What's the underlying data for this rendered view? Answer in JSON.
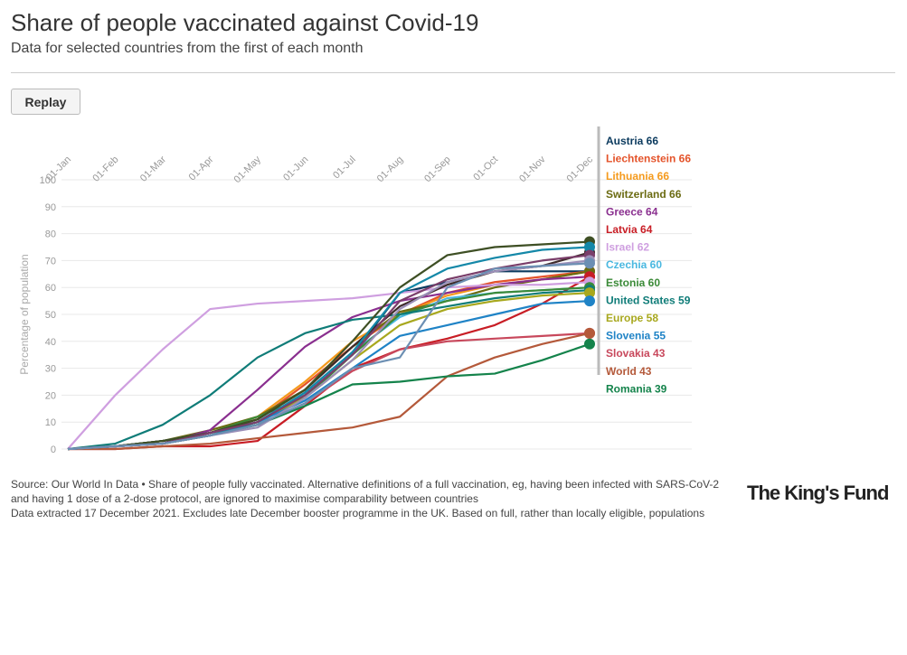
{
  "header": {
    "title": "Share of people vaccinated against Covid-19",
    "subtitle": "Data for selected countries from the first of each month"
  },
  "controls": {
    "replay_label": "Replay"
  },
  "footer": {
    "line1": "Source: Our World In Data • Share of people fully vaccinated. Alternative definitions of a full vaccination, eg, having been infected with SARS-CoV-2 and having 1 dose of a 2-dose protocol, are ignored to maximise comparability between countries",
    "line2": "Data extracted 17 December 2021. Excludes late December booster programme in the UK. Based on full, rather than locally eligible, populations",
    "logo": "The King's Fund"
  },
  "chart_data": {
    "type": "line",
    "title": "Share of people vaccinated against Covid-19",
    "subtitle": "Data for selected countries from the first of each month",
    "xlabel": "",
    "ylabel": "Percentage of population",
    "x": [
      "01-Jan",
      "01-Feb",
      "01-Mar",
      "01-Apr",
      "01-May",
      "01-Jun",
      "01-Jul",
      "01-Aug",
      "01-Sep",
      "01-Oct",
      "01-Nov",
      "01-Dec"
    ],
    "ylim": [
      0,
      100
    ],
    "yticks": [
      0,
      10,
      20,
      30,
      40,
      50,
      60,
      70,
      80,
      90,
      100
    ],
    "grid": true,
    "legend_placement": "right (end labels)",
    "series": [
      {
        "name": "Austria",
        "label": "Austria 66",
        "color": "#0b3a5e",
        "values": [
          0,
          1,
          3,
          6,
          10,
          20,
          35,
          58,
          62,
          66,
          66,
          66
        ]
      },
      {
        "name": "Liechtenstein",
        "label": "Liechtenstein 66",
        "color": "#e4532a",
        "values": [
          0,
          1,
          2,
          6,
          11,
          24,
          38,
          50,
          58,
          62,
          64,
          66
        ]
      },
      {
        "name": "Lithuania",
        "label": "Lithuania 66",
        "color": "#f59a1c",
        "values": [
          0,
          1,
          3,
          6,
          12,
          25,
          40,
          50,
          57,
          61,
          63,
          66
        ]
      },
      {
        "name": "Switzerland",
        "label": "Switzerland 66",
        "color": "#6b6b12",
        "values": [
          0,
          1,
          3,
          7,
          12,
          22,
          38,
          51,
          55,
          60,
          63,
          66
        ]
      },
      {
        "name": "Greece",
        "label": "Greece 64",
        "color": "#8a2f8f",
        "values": [
          0,
          1,
          2,
          7,
          22,
          38,
          49,
          55,
          58,
          61,
          63,
          64
        ]
      },
      {
        "name": "Latvia",
        "label": "Latvia 64",
        "color": "#c81d25",
        "values": [
          0,
          0,
          1,
          1,
          3,
          16,
          30,
          37,
          41,
          46,
          54,
          64
        ]
      },
      {
        "name": "Israel",
        "label": "Israel 62",
        "color": "#cf9fe0",
        "values": [
          0,
          20,
          37,
          52,
          54,
          55,
          56,
          58,
          60,
          61,
          61,
          62
        ]
      },
      {
        "name": "Czechia",
        "label": "Czechia 60",
        "color": "#4ab8e0",
        "values": [
          0,
          1,
          2,
          5,
          9,
          21,
          36,
          49,
          56,
          58,
          59,
          60
        ]
      },
      {
        "name": "Estonia",
        "label": "Estonia 60",
        "color": "#3b8a38",
        "values": [
          0,
          1,
          3,
          6,
          12,
          19,
          35,
          50,
          55,
          58,
          59,
          60
        ]
      },
      {
        "name": "United States",
        "label": "United States 59",
        "color": "#0f7c78",
        "values": [
          0,
          2,
          9,
          20,
          34,
          43,
          48,
          50,
          53,
          56,
          58,
          59
        ]
      },
      {
        "name": "Europe",
        "label": "Europe 58",
        "color": "#a8a81e",
        "values": [
          0,
          1,
          2,
          5,
          10,
          19,
          33,
          46,
          52,
          55,
          57,
          58
        ]
      },
      {
        "name": "Slovenia",
        "label": "Slovenia 55",
        "color": "#1f83c6",
        "values": [
          0,
          1,
          3,
          6,
          10,
          18,
          30,
          42,
          46,
          50,
          54,
          55
        ]
      },
      {
        "name": "Slovakia",
        "label": "Slovakia 43",
        "color": "#c8485c",
        "values": [
          0,
          1,
          2,
          5,
          9,
          17,
          29,
          37,
          40,
          41,
          42,
          43
        ]
      },
      {
        "name": "World",
        "label": "World 43",
        "color": "#b4593a",
        "values": [
          0,
          0,
          1,
          2,
          4,
          6,
          8,
          12,
          27,
          34,
          39,
          43
        ]
      },
      {
        "name": "Romania",
        "label": "Romania 39",
        "color": "#14834b",
        "values": [
          0,
          1,
          2,
          5,
          9,
          16,
          24,
          25,
          27,
          28,
          33,
          39
        ]
      },
      {
        "name": "",
        "label": "",
        "color": "#3d2a2a",
        "values": [
          0,
          1,
          3,
          6,
          11,
          22,
          38,
          53,
          61,
          66,
          68,
          73
        ]
      },
      {
        "name": "",
        "label": "",
        "color": "#3e4f24",
        "values": [
          0,
          1,
          3,
          6,
          11,
          22,
          40,
          60,
          72,
          75,
          76,
          77
        ]
      },
      {
        "name": "",
        "label": "",
        "color": "#1488a8",
        "values": [
          0,
          1,
          2,
          5,
          10,
          21,
          36,
          58,
          67,
          71,
          74,
          75
        ]
      },
      {
        "name": "",
        "label": "",
        "color": "#7a3e6a",
        "values": [
          0,
          1,
          2,
          6,
          10,
          20,
          35,
          55,
          63,
          67,
          70,
          72
        ]
      },
      {
        "name": "",
        "label": "",
        "color": "#9b8fb8",
        "values": [
          0,
          1,
          2,
          5,
          8,
          19,
          33,
          52,
          62,
          66,
          68,
          70
        ]
      },
      {
        "name": "",
        "label": "",
        "color": "#6c8fb3",
        "values": [
          0,
          1,
          2,
          5,
          9,
          17,
          30,
          34,
          60,
          67,
          68,
          69
        ]
      }
    ]
  }
}
